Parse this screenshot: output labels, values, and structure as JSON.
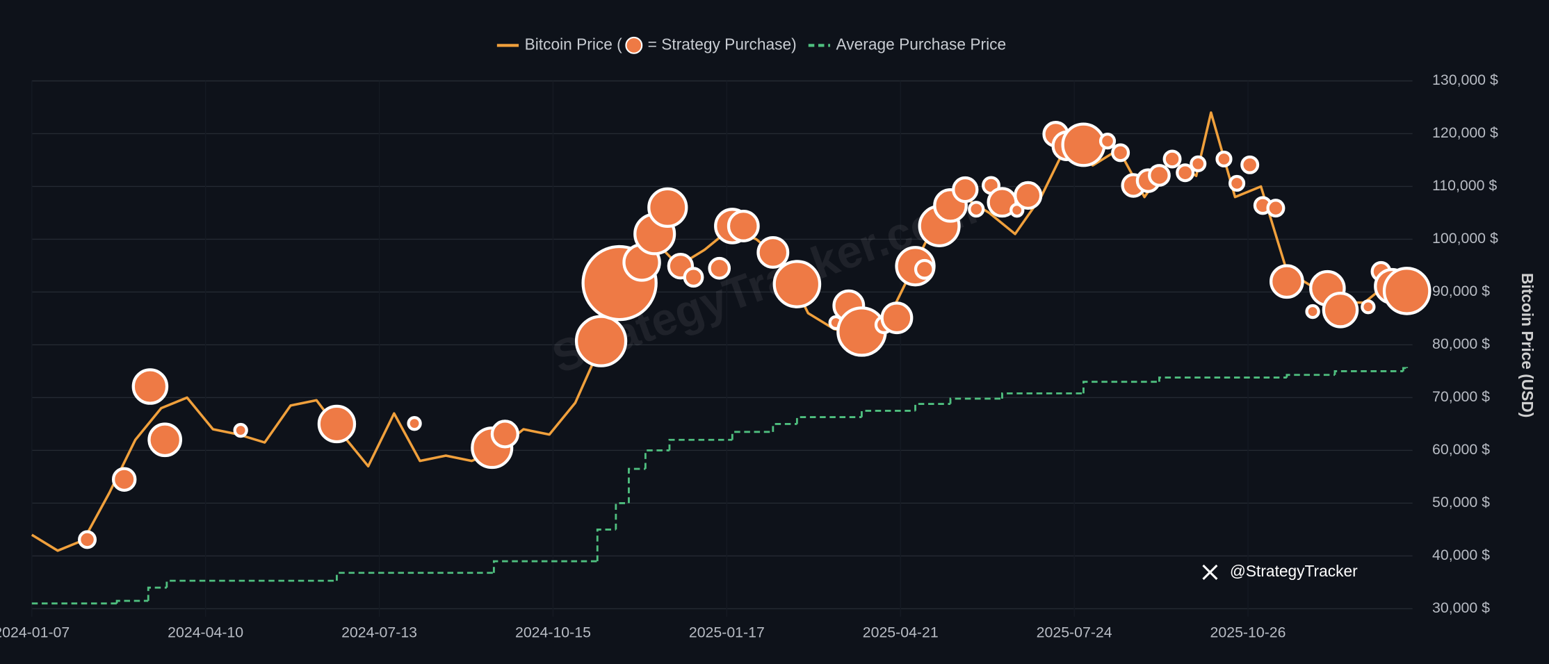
{
  "chart_data": {
    "type": "line",
    "watermark": "StrategyTracker.com",
    "attribution": "@StrategyTracker",
    "y_label": "Bitcoin Price (USD)",
    "xlim": [
      "2024-01-07",
      "2026-01-23"
    ],
    "xticks": [
      "2024-01-07",
      "2024-04-10",
      "2024-07-13",
      "2024-10-15",
      "2025-01-17",
      "2025-04-21",
      "2025-07-24",
      "2025-10-26"
    ],
    "ylim": [
      28500,
      130000
    ],
    "yticks": [
      {
        "value": 30000,
        "label": "30,000 $"
      },
      {
        "value": 40000,
        "label": "40,000 $"
      },
      {
        "value": 50000,
        "label": "50,000 $"
      },
      {
        "value": 60000,
        "label": "60,000 $"
      },
      {
        "value": 70000,
        "label": "70,000 $"
      },
      {
        "value": 80000,
        "label": "80,000 $"
      },
      {
        "value": 90000,
        "label": "90,000 $"
      },
      {
        "value": 100000,
        "label": "100,000 $"
      },
      {
        "value": 110000,
        "label": "110,000 $"
      },
      {
        "value": 120000,
        "label": "120,000 $"
      },
      {
        "value": 130000,
        "label": "130,000 $"
      }
    ],
    "grid": true,
    "legend": "top",
    "series": [
      {
        "name": "Bitcoin Price (",
        "type": "line",
        "color": "#f0a03c",
        "x": [
          "2024-01-07",
          "2024-01-21",
          "2024-02-04",
          "2024-02-18",
          "2024-03-03",
          "2024-03-17",
          "2024-03-31",
          "2024-04-14",
          "2024-04-28",
          "2024-05-12",
          "2024-05-26",
          "2024-06-09",
          "2024-06-23",
          "2024-07-07",
          "2024-07-21",
          "2024-08-04",
          "2024-08-18",
          "2024-09-01",
          "2024-09-15",
          "2024-09-29",
          "2024-10-13",
          "2024-10-27",
          "2024-11-10",
          "2024-11-24",
          "2024-12-08",
          "2024-12-22",
          "2025-01-05",
          "2025-01-19",
          "2025-02-02",
          "2025-02-16",
          "2025-03-02",
          "2025-03-16",
          "2025-03-30",
          "2025-04-13",
          "2025-04-27",
          "2025-05-11",
          "2025-05-25",
          "2025-06-08",
          "2025-06-22",
          "2025-07-06",
          "2025-07-20",
          "2025-08-03",
          "2025-08-17",
          "2025-08-31",
          "2025-09-14",
          "2025-09-28",
          "2025-10-06",
          "2025-10-19",
          "2025-11-02",
          "2025-11-16",
          "2025-11-30",
          "2025-12-14",
          "2025-12-28",
          "2026-01-11",
          "2026-01-20"
        ],
        "values": [
          44000,
          41000,
          43000,
          52000,
          62000,
          68000,
          70000,
          64000,
          63000,
          61500,
          68500,
          69500,
          63000,
          57000,
          67000,
          58000,
          59000,
          58000,
          60000,
          64000,
          63000,
          69000,
          80000,
          97000,
          100000,
          95000,
          98000,
          102000,
          100000,
          96000,
          86000,
          83000,
          82000,
          84000,
          94000,
          104000,
          108000,
          105000,
          101000,
          108000,
          118000,
          114000,
          117000,
          108000,
          115000,
          112000,
          124000,
          108000,
          110000,
          94000,
          91000,
          88000,
          88000,
          92000,
          90500
        ]
      },
      {
        "name": "Average Purchase Price",
        "type": "step",
        "color": "#4fbf7f",
        "x": [
          "2024-01-07",
          "2024-02-22",
          "2024-03-10",
          "2024-03-20",
          "2024-06-20",
          "2024-09-13",
          "2024-11-08",
          "2024-11-18",
          "2024-11-25",
          "2024-12-04",
          "2024-12-17",
          "2025-01-20",
          "2025-02-11",
          "2025-02-24",
          "2025-03-31",
          "2025-04-29",
          "2025-05-18",
          "2025-06-15",
          "2025-07-29",
          "2025-09-08",
          "2025-11-16",
          "2025-12-12",
          "2026-01-18",
          "2026-01-20"
        ],
        "values": [
          31000,
          31500,
          34000,
          35300,
          36800,
          39000,
          45000,
          50000,
          56500,
          60000,
          62000,
          63500,
          65000,
          66300,
          67500,
          68800,
          69800,
          70800,
          73000,
          73800,
          74300,
          75000,
          75600,
          75800
        ]
      },
      {
        "name": "= Strategy Purchase)",
        "type": "bubble",
        "color": "#ee7a45",
        "x": [
          "2024-02-06",
          "2024-02-26",
          "2024-03-11",
          "2024-03-19",
          "2024-04-29",
          "2024-06-20",
          "2024-08-01",
          "2024-09-12",
          "2024-09-19",
          "2024-11-10",
          "2024-11-20",
          "2024-12-02",
          "2024-12-09",
          "2024-12-16",
          "2024-12-23",
          "2024-12-30",
          "2025-01-13",
          "2025-01-20",
          "2025-01-26",
          "2025-02-11",
          "2025-02-24",
          "2025-03-17",
          "2025-03-24",
          "2025-03-31",
          "2025-04-12",
          "2025-04-19",
          "2025-04-29",
          "2025-05-04",
          "2025-05-12",
          "2025-05-18",
          "2025-05-26",
          "2025-06-01",
          "2025-06-09",
          "2025-06-15",
          "2025-06-23",
          "2025-06-29",
          "2025-07-14",
          "2025-07-20",
          "2025-07-29",
          "2025-08-11",
          "2025-08-18",
          "2025-08-25",
          "2025-09-02",
          "2025-09-08",
          "2025-09-15",
          "2025-09-22",
          "2025-09-29",
          "2025-10-13",
          "2025-10-20",
          "2025-10-27",
          "2025-11-03",
          "2025-11-10",
          "2025-11-16",
          "2025-11-30",
          "2025-12-08",
          "2025-12-15",
          "2025-12-30",
          "2026-01-06",
          "2026-01-12",
          "2026-01-20"
        ],
        "values": [
          43100,
          54500,
          72100,
          62000,
          63800,
          65000,
          65100,
          60500,
          63100,
          80700,
          91700,
          95600,
          101000,
          106000,
          94900,
          92800,
          94500,
          102500,
          102500,
          97500,
          91500,
          84200,
          87400,
          82500,
          83800,
          85100,
          94900,
          94300,
          102500,
          106400,
          109400,
          105700,
          110200,
          107000,
          105500,
          108300,
          119900,
          117700,
          117900,
          118600,
          116400,
          110200,
          111100,
          112100,
          115200,
          112600,
          114300,
          115200,
          110600,
          114100,
          106400,
          105900,
          92000,
          86300,
          90700,
          86600,
          87200,
          93900,
          91100,
          90200
        ],
        "sizes": [
          8,
          11,
          17,
          16,
          6,
          18,
          6,
          20,
          13,
          25,
          37,
          18,
          20,
          19,
          12,
          9,
          10,
          17,
          15,
          15,
          23,
          6,
          15,
          24,
          8,
          15,
          19,
          9,
          20,
          16,
          12,
          7,
          8,
          14,
          6,
          13,
          12,
          14,
          21,
          7,
          8,
          11,
          11,
          10,
          8,
          8,
          7,
          7,
          7,
          8,
          8,
          8,
          16,
          6,
          17,
          17,
          6,
          9,
          17,
          23
        ]
      }
    ]
  }
}
